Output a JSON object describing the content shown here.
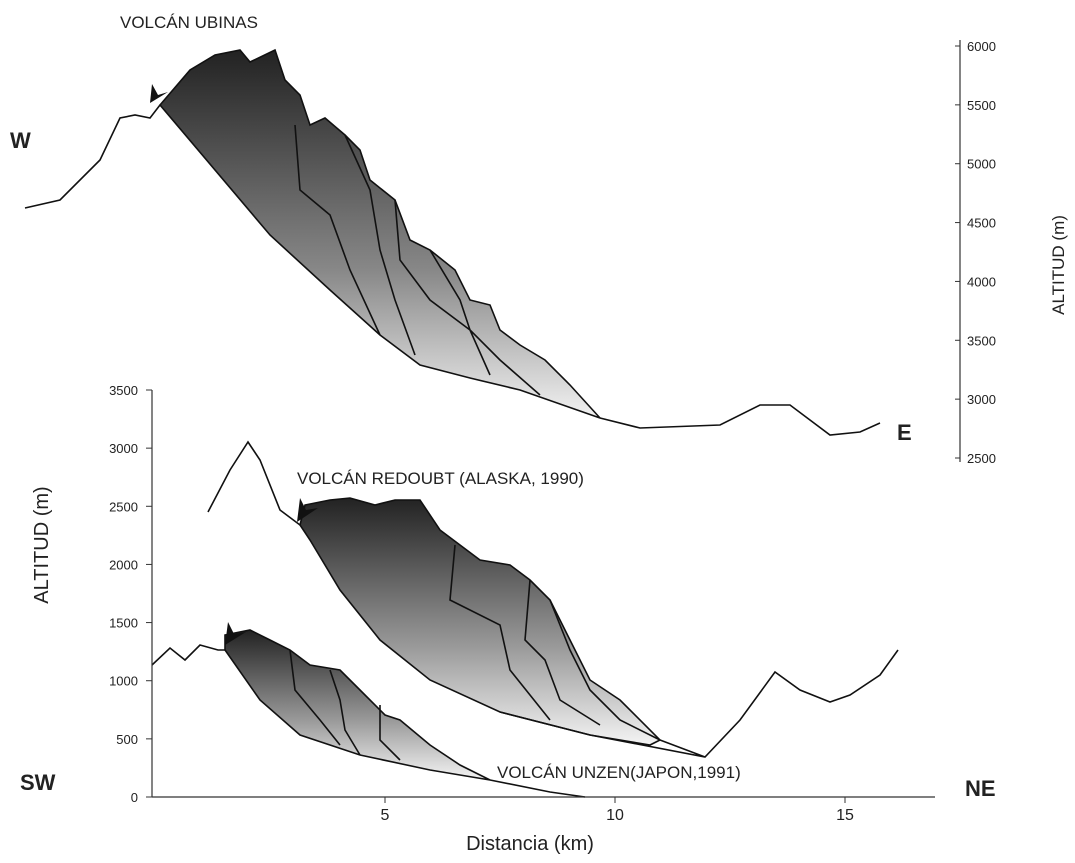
{
  "top_panel": {
    "title": "VOLCÁN UBINAS",
    "west": "W",
    "east": "E",
    "axis_label": "ALTITUD (m)",
    "ticks": [
      6000,
      5500,
      5000,
      4500,
      4000,
      3500,
      3000,
      2500
    ]
  },
  "bottom_panel": {
    "redoubt_label": "VOLCÁN REDOUBT (ALASKA, 1990)",
    "unzen_label": "VOLCÁN UNZEN(JAPON,1991)",
    "west": "SW",
    "east": "NE",
    "y_axis_label": "ALTITUD (m)",
    "x_axis_label": "Distancia (km)",
    "yticks": [
      0,
      500,
      1000,
      1500,
      2000,
      2500,
      3000,
      3500
    ],
    "xticks": [
      5,
      10,
      15
    ]
  }
}
